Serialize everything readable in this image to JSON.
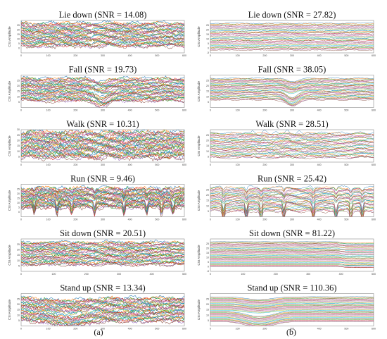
{
  "figure": {
    "column_labels": [
      "(a)",
      "(b)"
    ]
  },
  "chart_data": [
    {
      "type": "line",
      "column": "a",
      "row": 0,
      "title": "Lie down (SNR = 14.08)",
      "ylabel": "CSI Amplitude",
      "xlim": [
        0,
        600
      ],
      "ylim": [
        -5,
        30
      ],
      "x_ticks": [
        "0",
        "100",
        "200",
        "300",
        "400",
        "500",
        "600"
      ],
      "y_ticks": [
        "0",
        "5",
        "10",
        "15",
        "20",
        "25"
      ],
      "noise": 0.85,
      "wiggle": 1.6,
      "band": [
        2,
        27
      ],
      "n_series": 36,
      "feature": "flat"
    },
    {
      "type": "line",
      "column": "b",
      "row": 0,
      "title": "Lie down (SNR = 27.82)",
      "ylabel": "CSI Amplitude",
      "xlim": [
        0,
        600
      ],
      "ylim": [
        -5,
        30
      ],
      "x_ticks": [
        "0",
        "100",
        "200",
        "300",
        "400",
        "500",
        "600"
      ],
      "y_ticks": [
        "-5",
        "0",
        "5",
        "10",
        "15",
        "20",
        "25"
      ],
      "noise": 0.25,
      "wiggle": 0.3,
      "band": [
        -2,
        27
      ],
      "n_series": 36,
      "feature": "flat"
    },
    {
      "type": "line",
      "column": "a",
      "row": 1,
      "title": "Fall (SNR = 19.73)",
      "ylabel": "CSI Amplitude",
      "xlim": [
        0,
        600
      ],
      "ylim": [
        0,
        30
      ],
      "x_ticks": [
        "0",
        "100",
        "200",
        "300",
        "400",
        "500",
        "600"
      ],
      "y_ticks": [
        "5",
        "10",
        "15",
        "20",
        "25"
      ],
      "noise": 0.7,
      "wiggle": 1.2,
      "band": [
        6,
        27
      ],
      "n_series": 36,
      "feature": "dip-mid"
    },
    {
      "type": "line",
      "column": "b",
      "row": 1,
      "title": "Fall (SNR = 38.05)",
      "ylabel": "CSI Amplitude",
      "xlim": [
        0,
        600
      ],
      "ylim": [
        0,
        30
      ],
      "x_ticks": [
        "0",
        "100",
        "200",
        "300",
        "400",
        "500",
        "600"
      ],
      "y_ticks": [
        "5",
        "10",
        "15",
        "20",
        "25"
      ],
      "noise": 0.2,
      "wiggle": 0.4,
      "band": [
        7,
        27
      ],
      "n_series": 36,
      "feature": "dip-mid"
    },
    {
      "type": "line",
      "column": "a",
      "row": 2,
      "title": "Walk (SNR = 10.31)",
      "ylabel": "CSI Amplitude",
      "xlim": [
        0,
        600
      ],
      "ylim": [
        0,
        30
      ],
      "x_ticks": [
        "0",
        "100",
        "200",
        "300",
        "400",
        "500",
        "600"
      ],
      "y_ticks": [
        "5",
        "10",
        "15",
        "20",
        "25",
        "30"
      ],
      "noise": 1.1,
      "wiggle": 1.6,
      "band": [
        4,
        28
      ],
      "n_series": 36,
      "feature": "flat"
    },
    {
      "type": "line",
      "column": "b",
      "row": 2,
      "title": "Walk (SNR = 28.51)",
      "ylabel": "CSI Amplitude",
      "xlim": [
        0,
        600
      ],
      "ylim": [
        0,
        30
      ],
      "x_ticks": [
        "0",
        "100",
        "200",
        "300",
        "400",
        "500",
        "600"
      ],
      "y_ticks": [
        "5",
        "10",
        "15",
        "20",
        "25"
      ],
      "noise": 0.3,
      "wiggle": 0.8,
      "band": [
        4,
        27
      ],
      "n_series": 36,
      "feature": "wobble-mid"
    },
    {
      "type": "line",
      "column": "a",
      "row": 3,
      "title": "Run (SNR = 9.46)",
      "ylabel": "CSI Amplitude",
      "xlim": [
        0,
        600
      ],
      "ylim": [
        -5,
        30
      ],
      "x_ticks": [
        "0",
        "100",
        "200",
        "300",
        "400",
        "500",
        "600"
      ],
      "y_ticks": [
        "0",
        "5",
        "10",
        "15",
        "20",
        "25"
      ],
      "noise": 1.1,
      "wiggle": 1.4,
      "band": [
        5,
        26
      ],
      "n_series": 36,
      "feature": "spikes"
    },
    {
      "type": "line",
      "column": "b",
      "row": 3,
      "title": "Run (SNR = 25.42)",
      "ylabel": "CSI Amplitude",
      "xlim": [
        0,
        600
      ],
      "ylim": [
        0,
        30
      ],
      "x_ticks": [
        "0",
        "100",
        "200",
        "300",
        "400",
        "500",
        "600"
      ],
      "y_ticks": [
        "5",
        "10",
        "15",
        "20",
        "25"
      ],
      "noise": 0.35,
      "wiggle": 1.2,
      "band": [
        5,
        27
      ],
      "n_series": 36,
      "feature": "spikes"
    },
    {
      "type": "line",
      "column": "a",
      "row": 4,
      "title": "Sit down (SNR = 20.51)",
      "ylabel": "CSI Amplitude",
      "xlim": [
        0,
        500
      ],
      "ylim": [
        0,
        30
      ],
      "x_ticks": [
        "0",
        "100",
        "200",
        "300",
        "400",
        "500"
      ],
      "y_ticks": [
        "5",
        "10",
        "15",
        "20",
        "25"
      ],
      "noise": 0.7,
      "wiggle": 1.0,
      "band": [
        6,
        27
      ],
      "n_series": 36,
      "feature": "flat"
    },
    {
      "type": "line",
      "column": "b",
      "row": 4,
      "title": "Sit down (SNR = 81.22)",
      "ylabel": "CSI Amplitude",
      "xlim": [
        0,
        500
      ],
      "ylim": [
        -5,
        30
      ],
      "x_ticks": [
        "0",
        "100",
        "200",
        "300",
        "400",
        "500"
      ],
      "y_ticks": [
        "-5",
        "0",
        "5",
        "10",
        "15",
        "20",
        "25"
      ],
      "noise": 0.08,
      "wiggle": 0.1,
      "band": [
        0,
        27
      ],
      "n_series": 36,
      "feature": "step-late"
    },
    {
      "type": "line",
      "column": "a",
      "row": 5,
      "title": "Stand up (SNR = 13.34)",
      "ylabel": "CSI Amplitude",
      "xlim": [
        0,
        600
      ],
      "ylim": [
        0,
        30
      ],
      "x_ticks": [
        "0",
        "100",
        "200",
        "300",
        "400",
        "500",
        "600"
      ],
      "y_ticks": [
        "5",
        "10",
        "15",
        "20",
        "25"
      ],
      "noise": 0.9,
      "wiggle": 1.2,
      "band": [
        4,
        26
      ],
      "n_series": 36,
      "feature": "dip-early"
    },
    {
      "type": "line",
      "column": "b",
      "row": 5,
      "title": "Stand up (SNR = 110.36)",
      "ylabel": "CSI Amplitude",
      "xlim": [
        0,
        600
      ],
      "ylim": [
        0,
        30
      ],
      "x_ticks": [
        "0",
        "100",
        "200",
        "300",
        "400",
        "500",
        "600"
      ],
      "y_ticks": [
        "5",
        "10",
        "15",
        "20",
        "25"
      ],
      "noise": 0.05,
      "wiggle": 0.1,
      "band": [
        4,
        27
      ],
      "n_series": 36,
      "feature": "dip-early"
    }
  ],
  "series_colors": [
    "#1f77b4",
    "#ff7f0e",
    "#2ca02c",
    "#d62728",
    "#9467bd",
    "#8c564b",
    "#e377c2",
    "#7f7f7f",
    "#bcbd22",
    "#17becf"
  ]
}
